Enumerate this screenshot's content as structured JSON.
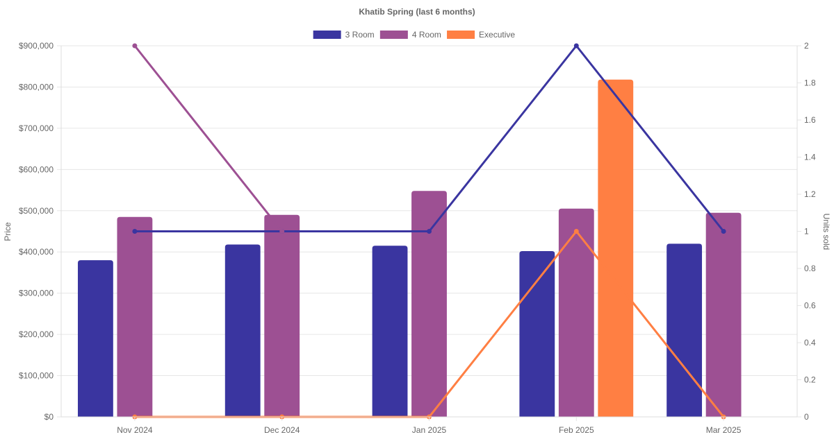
{
  "chart_data": {
    "type": "bar",
    "title": "Khatib Spring (last 6 months)",
    "categories": [
      "Nov 2024",
      "Dec 2024",
      "Jan 2025",
      "Feb 2025",
      "Mar 2025"
    ],
    "y_left": {
      "label": "Price",
      "range": [
        0,
        900000
      ],
      "ticks": [
        "$0",
        "$100,000",
        "$200,000",
        "$300,000",
        "$400,000",
        "$500,000",
        "$600,000",
        "$700,000",
        "$800,000",
        "$900,000"
      ]
    },
    "y_right": {
      "label": "Units sold",
      "range": [
        0,
        2
      ],
      "ticks": [
        "0",
        "0.2",
        "0.4",
        "0.6",
        "0.8",
        "1",
        "1.2",
        "1.4",
        "1.6",
        "1.8",
        "2"
      ]
    },
    "grid": true,
    "legend_position": "top",
    "series": [
      {
        "name": "3 Room",
        "color": "#3a35a0",
        "price": [
          380000,
          418000,
          415000,
          402000,
          420000
        ],
        "units": [
          1,
          1,
          1,
          2,
          1
        ]
      },
      {
        "name": "4 Room",
        "color": "#9d5093",
        "price": [
          485000,
          490000,
          548000,
          505000,
          495000
        ],
        "units": [
          2,
          1,
          null,
          null,
          null
        ]
      },
      {
        "name": "Executive",
        "color": "#ff7f43",
        "price": [
          null,
          null,
          null,
          818000,
          null
        ],
        "units": [
          0,
          0,
          0,
          1,
          0
        ]
      }
    ]
  }
}
